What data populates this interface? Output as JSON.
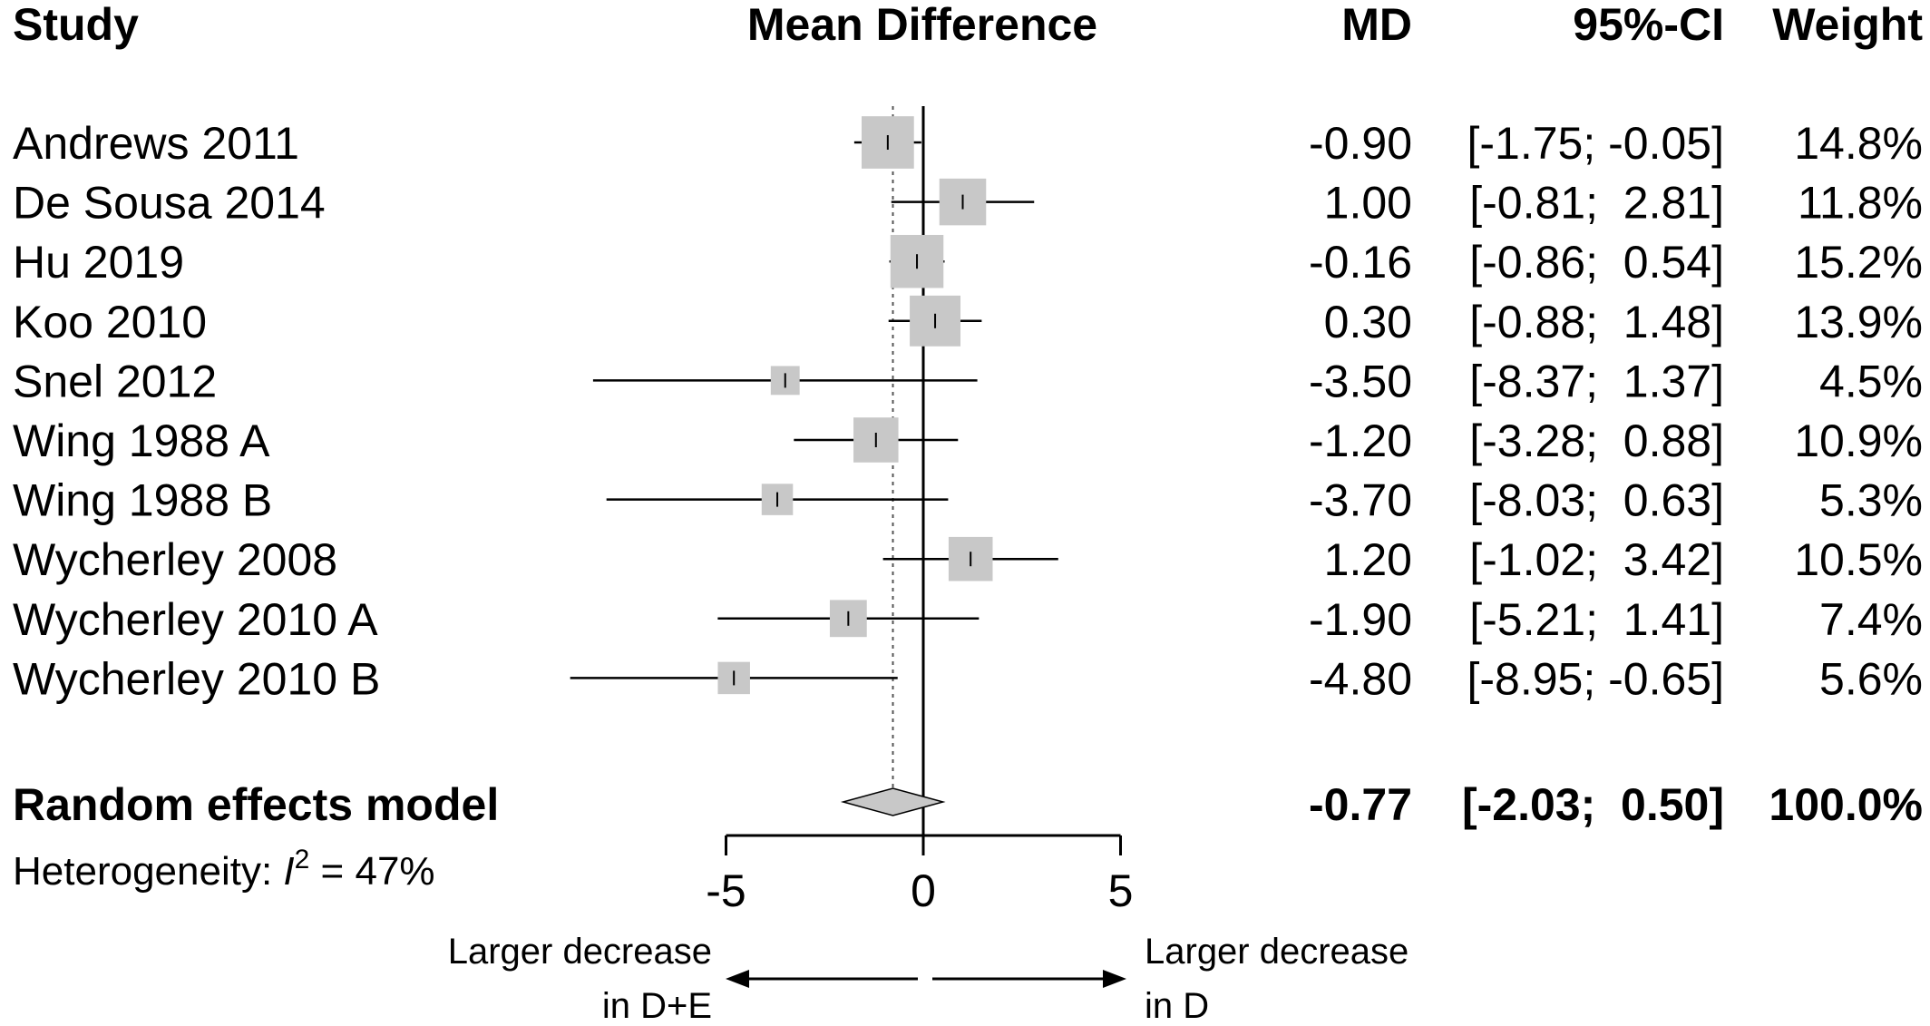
{
  "chart_data": {
    "type": "forest",
    "columns": {
      "study": "Study",
      "effect": "Mean Difference",
      "md": "MD",
      "ci": "95%-CI",
      "weight": "Weight"
    },
    "studies": [
      {
        "name": "Andrews 2011",
        "md": -0.9,
        "lower": -1.75,
        "upper": -0.05,
        "weight": 14.8,
        "md_label": "-0.90",
        "ci_label": "[-1.75; -0.05]",
        "weight_label": "14.8%"
      },
      {
        "name": "De Sousa 2014",
        "md": 1.0,
        "lower": -0.81,
        "upper": 2.81,
        "weight": 11.8,
        "md_label": "1.00",
        "ci_label": "[-0.81;  2.81]",
        "weight_label": "11.8%"
      },
      {
        "name": "Hu 2019",
        "md": -0.16,
        "lower": -0.86,
        "upper": 0.54,
        "weight": 15.2,
        "md_label": "-0.16",
        "ci_label": "[-0.86;  0.54]",
        "weight_label": "15.2%"
      },
      {
        "name": "Koo 2010",
        "md": 0.3,
        "lower": -0.88,
        "upper": 1.48,
        "weight": 13.9,
        "md_label": "0.30",
        "ci_label": "[-0.88;  1.48]",
        "weight_label": "13.9%"
      },
      {
        "name": "Snel 2012",
        "md": -3.5,
        "lower": -8.37,
        "upper": 1.37,
        "weight": 4.5,
        "md_label": "-3.50",
        "ci_label": "[-8.37;  1.37]",
        "weight_label": "4.5%"
      },
      {
        "name": "Wing 1988 A",
        "md": -1.2,
        "lower": -3.28,
        "upper": 0.88,
        "weight": 10.9,
        "md_label": "-1.20",
        "ci_label": "[-3.28;  0.88]",
        "weight_label": "10.9%"
      },
      {
        "name": "Wing 1988 B",
        "md": -3.7,
        "lower": -8.03,
        "upper": 0.63,
        "weight": 5.3,
        "md_label": "-3.70",
        "ci_label": "[-8.03;  0.63]",
        "weight_label": "5.3%"
      },
      {
        "name": "Wycherley 2008",
        "md": 1.2,
        "lower": -1.02,
        "upper": 3.42,
        "weight": 10.5,
        "md_label": "1.20",
        "ci_label": "[-1.02;  3.42]",
        "weight_label": "10.5%"
      },
      {
        "name": "Wycherley 2010 A",
        "md": -1.9,
        "lower": -5.21,
        "upper": 1.41,
        "weight": 7.4,
        "md_label": "-1.90",
        "ci_label": "[-5.21;  1.41]",
        "weight_label": "7.4%"
      },
      {
        "name": "Wycherley 2010 B",
        "md": -4.8,
        "lower": -8.95,
        "upper": -0.65,
        "weight": 5.6,
        "md_label": "-4.80",
        "ci_label": "[-8.95; -0.65]",
        "weight_label": "5.6%"
      }
    ],
    "pooled": {
      "name": "Random effects model",
      "md": -0.77,
      "lower": -2.03,
      "upper": 0.5,
      "md_label": "-0.77",
      "ci_label": "[-2.03;  0.50]",
      "weight_label": "100.0%"
    },
    "heterogeneity": {
      "prefix": "Heterogeneity: ",
      "symbol": "I",
      "exponent": "2",
      "suffix": " = 47%"
    },
    "x_axis": {
      "range": [
        -5,
        5
      ],
      "ticks": [
        -5,
        0,
        5
      ],
      "tick_labels": [
        "-5",
        "0",
        "5"
      ],
      "clip": [
        -9,
        5
      ]
    },
    "direction": {
      "left": [
        "Larger decrease",
        "in D+E"
      ],
      "right": [
        "Larger decrease",
        "in D"
      ]
    },
    "colors": {
      "box": "#c8c8c8",
      "diamond": "#c8c8c8",
      "line": "#000000"
    }
  }
}
